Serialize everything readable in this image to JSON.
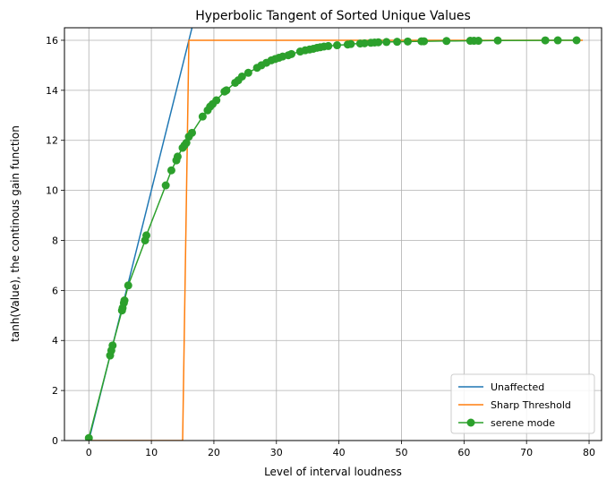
{
  "chart_data": {
    "type": "line",
    "title": "Hyperbolic Tangent of Sorted Unique Values",
    "xlabel": "Level of interval loudness",
    "ylabel": "tanh(Value), the continous gain function",
    "xlim": [
      -3.9,
      82
    ],
    "ylim": [
      0,
      16.5
    ],
    "xticks": [
      0,
      10,
      20,
      30,
      40,
      50,
      60,
      70,
      80
    ],
    "yticks": [
      0,
      2,
      4,
      6,
      8,
      10,
      12,
      14,
      16
    ],
    "grid": true,
    "legend_position": "lower-right",
    "series": [
      {
        "name": "Unaffected",
        "color": "#1f77b4",
        "marker": false,
        "x": [
          0,
          16.5
        ],
        "y": [
          0,
          16.5
        ]
      },
      {
        "name": "Sharp Threshold",
        "color": "#ff7f0e",
        "marker": false,
        "x": [
          0,
          15,
          16,
          79
        ],
        "y": [
          0,
          0,
          16,
          16
        ]
      },
      {
        "name": "serene mode",
        "color": "#2ca02c",
        "marker": true,
        "x": [
          0,
          3.4,
          3.6,
          3.8,
          5.3,
          5.4,
          5.6,
          5.7,
          6.3,
          9.0,
          9.2,
          12.3,
          13.2,
          14.0,
          14.2,
          15.0,
          15.3,
          15.6,
          16.0,
          16.5,
          18.2,
          19.0,
          19.4,
          19.8,
          20.4,
          21.7,
          22.0,
          23.4,
          23.9,
          24.5,
          25.5,
          26.9,
          27.6,
          28.4,
          29.2,
          29.8,
          30.4,
          31.0,
          31.9,
          32.4,
          33.8,
          34.6,
          35.3,
          35.9,
          36.5,
          37.0,
          37.6,
          38.3,
          39.7,
          41.4,
          41.9,
          43.4,
          44.1,
          45.1,
          45.7,
          46.3,
          47.6,
          49.3,
          51.0,
          53.2,
          53.6,
          57.2,
          61.0,
          61.6,
          62.3,
          65.4,
          73.0,
          75.0,
          78.0
        ],
        "y": [
          0.1,
          3.4,
          3.6,
          3.8,
          5.2,
          5.3,
          5.5,
          5.6,
          6.2,
          8.0,
          8.2,
          10.2,
          10.8,
          11.2,
          11.35,
          11.7,
          11.8,
          11.9,
          12.15,
          12.3,
          12.95,
          13.2,
          13.35,
          13.45,
          13.6,
          13.95,
          14.0,
          14.3,
          14.4,
          14.55,
          14.7,
          14.9,
          15.0,
          15.1,
          15.2,
          15.25,
          15.3,
          15.35,
          15.4,
          15.45,
          15.55,
          15.6,
          15.63,
          15.66,
          15.7,
          15.72,
          15.75,
          15.77,
          15.8,
          15.83,
          15.85,
          15.87,
          15.88,
          15.9,
          15.91,
          15.92,
          15.93,
          15.94,
          15.95,
          15.96,
          15.96,
          15.97,
          15.98,
          15.98,
          15.98,
          15.99,
          15.995,
          15.997,
          15.999
        ]
      }
    ]
  }
}
